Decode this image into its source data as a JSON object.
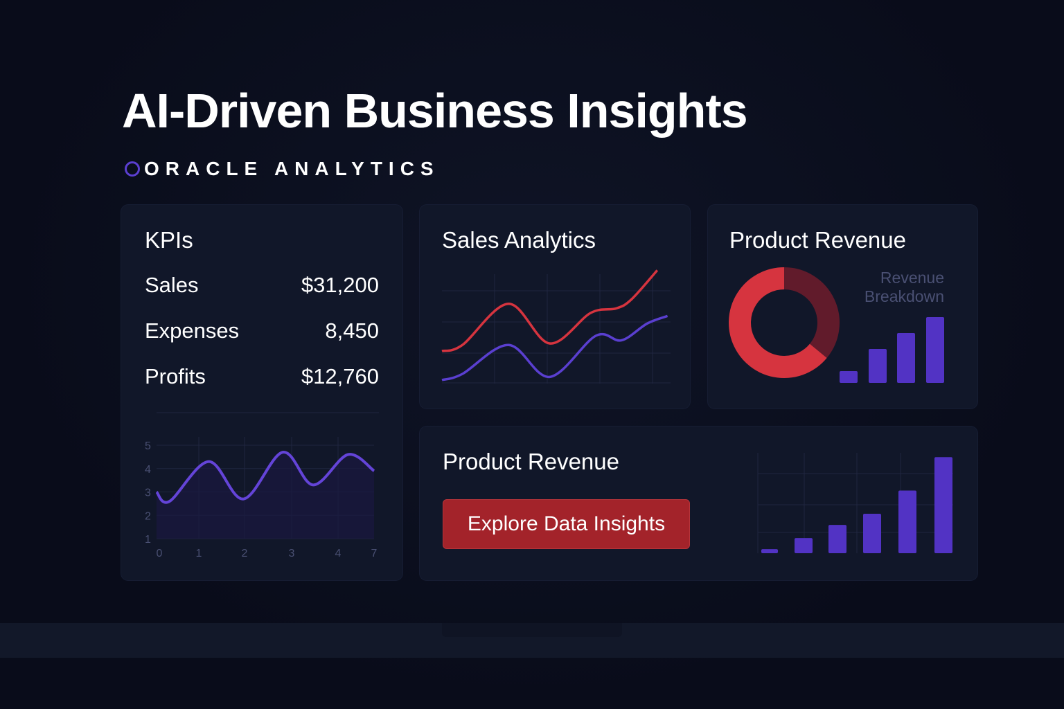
{
  "header": {
    "title": "AI-Driven Business Insights",
    "subtitle": "ORACLE ANALYTICS"
  },
  "kpis": {
    "title": "KPIs",
    "items": [
      {
        "label": "Sales",
        "value": "$31,200"
      },
      {
        "label": "Expenses",
        "value": "8,450"
      },
      {
        "label": "Profits",
        "value": "$12,760"
      }
    ]
  },
  "sales": {
    "title": "Sales Analytics"
  },
  "product_top": {
    "title": "Product Revenue",
    "legend_line1": "Revenue",
    "legend_line2": "Breakdown"
  },
  "product_bottom": {
    "title": "Product Revenue",
    "button_label": "Explore Data Insights"
  },
  "colors": {
    "accent_purple": "#5a3fd0",
    "accent_red": "#d6343f",
    "dark_red": "#611b2b",
    "button_red": "#a3232a"
  },
  "chart_data": [
    {
      "type": "line",
      "x_tick_labels": [
        "0",
        "1",
        "2",
        "3",
        "4",
        "7"
      ],
      "y_tick_labels": [
        "1",
        "2",
        "3",
        "4",
        "5"
      ],
      "ylim": [
        1,
        5
      ],
      "grid": true,
      "series": [
        {
          "points": [
            [
              0,
              3
            ],
            [
              0.3,
              2.6
            ],
            [
              1.2,
              4.3
            ],
            [
              2,
              2.7
            ],
            [
              2.9,
              4.7
            ],
            [
              3.6,
              3.3
            ],
            [
              4.4,
              4.6
            ],
            [
              5,
              3.9
            ]
          ]
        }
      ]
    },
    {
      "type": "line",
      "grid": true,
      "series": [
        {
          "color": "#d6343f",
          "values": [
            [
              0,
              2
            ],
            [
              0.4,
              2.4
            ],
            [
              1.3,
              5.1
            ],
            [
              2.1,
              2.5
            ],
            [
              2.9,
              4.5
            ],
            [
              3.4,
              4.8
            ],
            [
              3.7,
              5.4
            ],
            [
              4.2,
              7.3
            ]
          ]
        },
        {
          "color": "#5a3fd0",
          "values": [
            [
              0,
              0.1
            ],
            [
              0.4,
              0.5
            ],
            [
              1.3,
              2.4
            ],
            [
              2.1,
              0.3
            ],
            [
              3.0,
              3.0
            ],
            [
              3.5,
              2.7
            ],
            [
              4.0,
              3.8
            ],
            [
              4.4,
              4.3
            ]
          ]
        }
      ]
    },
    {
      "type": "pie",
      "donut": true,
      "slices": [
        {
          "value": 64,
          "color": "#d6343f"
        },
        {
          "value": 36,
          "color": "#611b2b"
        }
      ]
    },
    {
      "type": "bar",
      "values": [
        17,
        49,
        72,
        95
      ]
    },
    {
      "type": "bar",
      "grid": true,
      "values": [
        0.4,
        1.5,
        2.8,
        3.9,
        6.2,
        9.5
      ]
    }
  ]
}
